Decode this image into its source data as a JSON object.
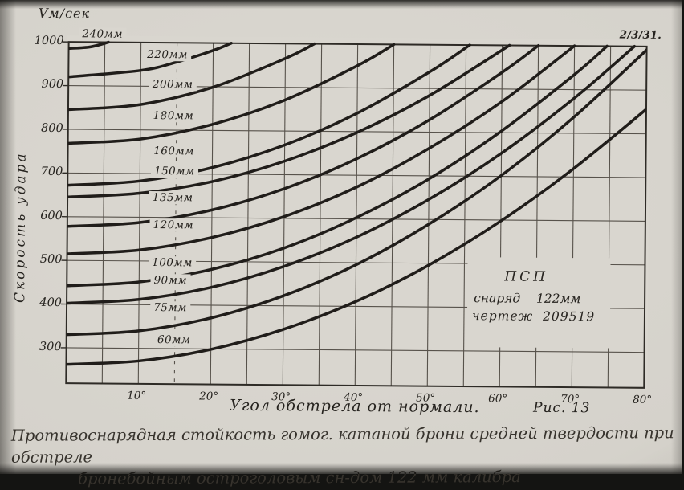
{
  "photo": {
    "corner_note": "2/3/31."
  },
  "caption": {
    "line1": "Противоснарядная стойкость гомог. катаной брони средней твердости при обстреле",
    "line2": "бронебойным остроголовым сн-дом 122 мм калибра"
  },
  "chart_data": {
    "type": "line",
    "title": "Противоснарядная стойкость гомог. катаной брони средней твердости при обстреле бронебойным остроголовым сн-дом 122 мм калибра",
    "y_unit_label": "Vм/сек",
    "ylabel": "Скорость удара",
    "xlabel": "Угол обстрела от нормали.",
    "fig_label": "Рис. 13",
    "xlim_deg": [
      0,
      80
    ],
    "ylim": [
      220,
      1000
    ],
    "grid": {
      "x_step_deg": 5,
      "y_step": 100,
      "dashed_vertical_deg": 15,
      "grid_on": true
    },
    "x_ticks": [
      {
        "value": 10,
        "label": "10°"
      },
      {
        "value": 20,
        "label": "20°"
      },
      {
        "value": 30,
        "label": "30°"
      },
      {
        "value": 40,
        "label": "40°"
      },
      {
        "value": 50,
        "label": "50°"
      },
      {
        "value": 60,
        "label": "60°"
      },
      {
        "value": 70,
        "label": "70°"
      },
      {
        "value": 80,
        "label": "80°"
      }
    ],
    "y_ticks": [
      {
        "value": 1000,
        "label": "1000"
      },
      {
        "value": 900,
        "label": "900"
      },
      {
        "value": 800,
        "label": "800"
      },
      {
        "value": 700,
        "label": "700"
      },
      {
        "value": 600,
        "label": "600"
      },
      {
        "value": 500,
        "label": "500"
      },
      {
        "value": 400,
        "label": "400"
      },
      {
        "value": 300,
        "label": "300"
      }
    ],
    "series": [
      {
        "name": "240мм",
        "thickness_mm": 240,
        "label_pos": [
          126,
          45
        ],
        "points_deg_v": [
          [
            0,
            985
          ],
          [
            3,
            989
          ],
          [
            5.5,
            1000
          ]
        ]
      },
      {
        "name": "220мм",
        "thickness_mm": 220,
        "label_pos": [
          207,
          70
        ],
        "points_deg_v": [
          [
            0,
            920
          ],
          [
            10,
            936
          ],
          [
            15,
            956
          ],
          [
            20,
            983
          ],
          [
            22.5,
            1000
          ]
        ]
      },
      {
        "name": "200мм",
        "thickness_mm": 200,
        "label_pos": [
          214,
          107
        ],
        "points_deg_v": [
          [
            0,
            845
          ],
          [
            10,
            858
          ],
          [
            20,
            899
          ],
          [
            30,
            966
          ],
          [
            34,
            1000
          ]
        ]
      },
      {
        "name": "180мм",
        "thickness_mm": 180,
        "label_pos": [
          215,
          146
        ],
        "points_deg_v": [
          [
            0,
            768
          ],
          [
            10,
            779
          ],
          [
            20,
            814
          ],
          [
            30,
            871
          ],
          [
            40,
            951
          ],
          [
            45,
            1000
          ]
        ]
      },
      {
        "name": "160мм",
        "thickness_mm": 160,
        "label_pos": [
          216,
          190
        ],
        "points_deg_v": [
          [
            0,
            672
          ],
          [
            10,
            683
          ],
          [
            20,
            715
          ],
          [
            30,
            768
          ],
          [
            40,
            842
          ],
          [
            50,
            938
          ],
          [
            55.5,
            1000
          ]
        ]
      },
      {
        "name": "150мм",
        "thickness_mm": 150,
        "label_pos": [
          217,
          215
        ],
        "points_deg_v": [
          [
            0,
            645
          ],
          [
            10,
            655
          ],
          [
            20,
            683
          ],
          [
            30,
            731
          ],
          [
            40,
            798
          ],
          [
            50,
            884
          ],
          [
            61,
            1000
          ]
        ]
      },
      {
        "name": "135мм",
        "thickness_mm": 135,
        "label_pos": [
          215,
          248
        ],
        "points_deg_v": [
          [
            0,
            578
          ],
          [
            10,
            588
          ],
          [
            20,
            618
          ],
          [
            30,
            668
          ],
          [
            40,
            738
          ],
          [
            50,
            828
          ],
          [
            60,
            938
          ],
          [
            65,
            1000
          ]
        ]
      },
      {
        "name": "120мм",
        "thickness_mm": 120,
        "label_pos": [
          216,
          282
        ],
        "points_deg_v": [
          [
            0,
            515
          ],
          [
            10,
            525
          ],
          [
            20,
            555
          ],
          [
            30,
            604
          ],
          [
            40,
            673
          ],
          [
            50,
            763
          ],
          [
            60,
            871
          ],
          [
            70,
            1000
          ]
        ]
      },
      {
        "name": "100мм",
        "thickness_mm": 100,
        "label_pos": [
          215,
          329
        ],
        "points_deg_v": [
          [
            0,
            442
          ],
          [
            10,
            452
          ],
          [
            20,
            482
          ],
          [
            30,
            532
          ],
          [
            40,
            603
          ],
          [
            50,
            693
          ],
          [
            60,
            804
          ],
          [
            70,
            934
          ],
          [
            74.5,
            1000
          ]
        ]
      },
      {
        "name": "90мм",
        "thickness_mm": 90,
        "label_pos": [
          213,
          351
        ],
        "points_deg_v": [
          [
            0,
            402
          ],
          [
            10,
            412
          ],
          [
            20,
            441
          ],
          [
            30,
            490
          ],
          [
            40,
            558
          ],
          [
            50,
            646
          ],
          [
            60,
            753
          ],
          [
            70,
            880
          ],
          [
            78.3,
            1000
          ]
        ]
      },
      {
        "name": "75мм",
        "thickness_mm": 75,
        "label_pos": [
          213,
          385
        ],
        "points_deg_v": [
          [
            0,
            330
          ],
          [
            10,
            340
          ],
          [
            20,
            371
          ],
          [
            30,
            423
          ],
          [
            40,
            495
          ],
          [
            50,
            589
          ],
          [
            60,
            702
          ],
          [
            70,
            837
          ],
          [
            80.5,
            1000
          ]
        ]
      },
      {
        "name": "60мм",
        "thickness_mm": 60,
        "label_pos": [
          218,
          425
        ],
        "points_deg_v": [
          [
            0,
            262
          ],
          [
            10,
            271
          ],
          [
            20,
            299
          ],
          [
            30,
            346
          ],
          [
            40,
            411
          ],
          [
            50,
            495
          ],
          [
            60,
            598
          ],
          [
            70,
            719
          ],
          [
            80.7,
            866
          ]
        ]
      }
    ],
    "annotation": {
      "lines": [
        "ПСП",
        "снаряд    122мм",
        "чертеж  209519"
      ]
    },
    "colors": {
      "ink": "#26231f",
      "curve": "#201d1a",
      "grid": "#57524b",
      "paper": "#d9d6cf",
      "frame": "#2e2b26"
    },
    "legend_position": "none"
  }
}
